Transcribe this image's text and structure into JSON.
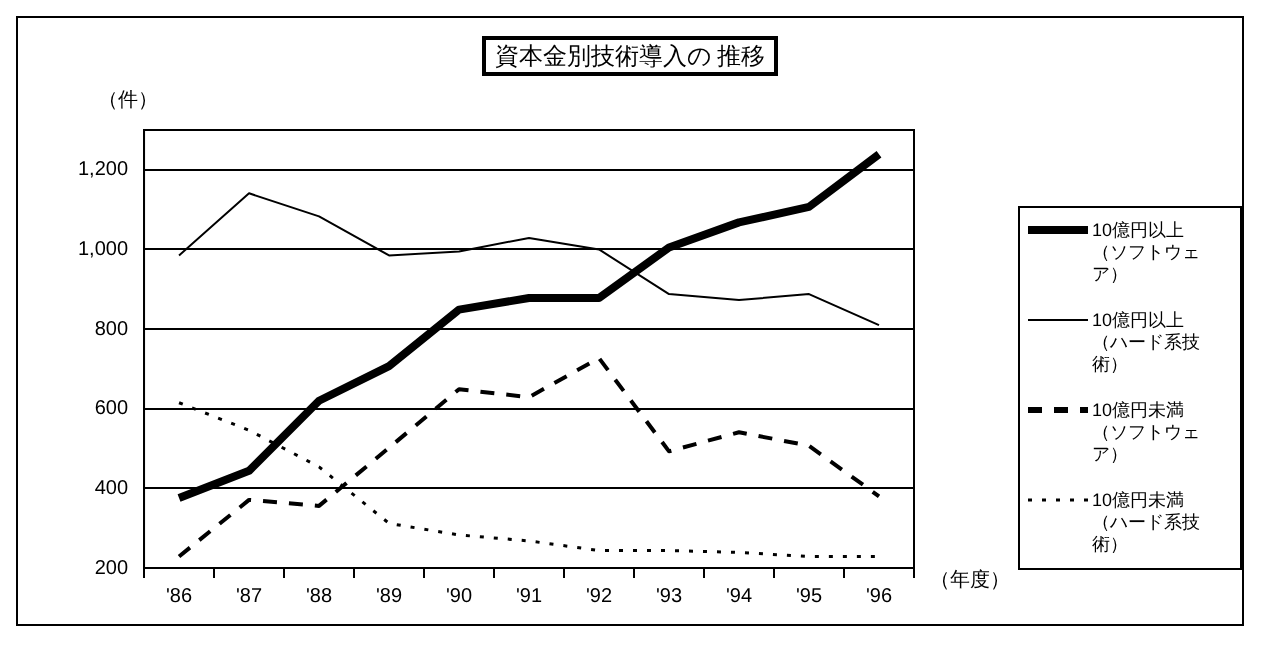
{
  "chart_data": {
    "type": "line",
    "title": "資本金別技術導入の 推移",
    "ylabel": "（件）",
    "xlabel": "（年度）",
    "categories": [
      "'86",
      "'87",
      "'88",
      "'89",
      "'90",
      "'91",
      "'92",
      "'93",
      "'94",
      "'95",
      "'96"
    ],
    "series": [
      {
        "name": "10億円以上（ソフトウェア）",
        "color": "#000000",
        "line_style": "solid",
        "values": [
          376,
          444,
          620,
          707,
          849,
          878,
          878,
          1005,
          1068,
          1107,
          1239
        ]
      },
      {
        "name": "10億円以上（ハード系技術）",
        "color": "#000000",
        "line_style": "solid",
        "values": [
          985,
          1141,
          1083,
          985,
          995,
          1029,
          1000,
          888,
          873,
          888,
          810
        ]
      },
      {
        "name": "10億円未満（ソフトウェア）",
        "color": "#000000",
        "line_style": "dashed",
        "values": [
          229,
          371,
          356,
          502,
          649,
          629,
          727,
          493,
          541,
          507,
          380
        ]
      },
      {
        "name": "10億円未満（ハード系技術）",
        "color": "#000000",
        "line_style": "dotted",
        "values": [
          615,
          546,
          454,
          312,
          283,
          268,
          244,
          244,
          239,
          229,
          229
        ]
      }
    ],
    "ylim": [
      200,
      1300
    ],
    "yticks": [
      {
        "value": 200,
        "label": "200"
      },
      {
        "value": 400,
        "label": "400"
      },
      {
        "value": 600,
        "label": "600"
      },
      {
        "value": 800,
        "label": "800"
      },
      {
        "value": 1000,
        "label": "1,000"
      },
      {
        "value": 1200,
        "label": "1,200"
      }
    ],
    "grid": "y",
    "legend": "right",
    "marker": "none"
  }
}
